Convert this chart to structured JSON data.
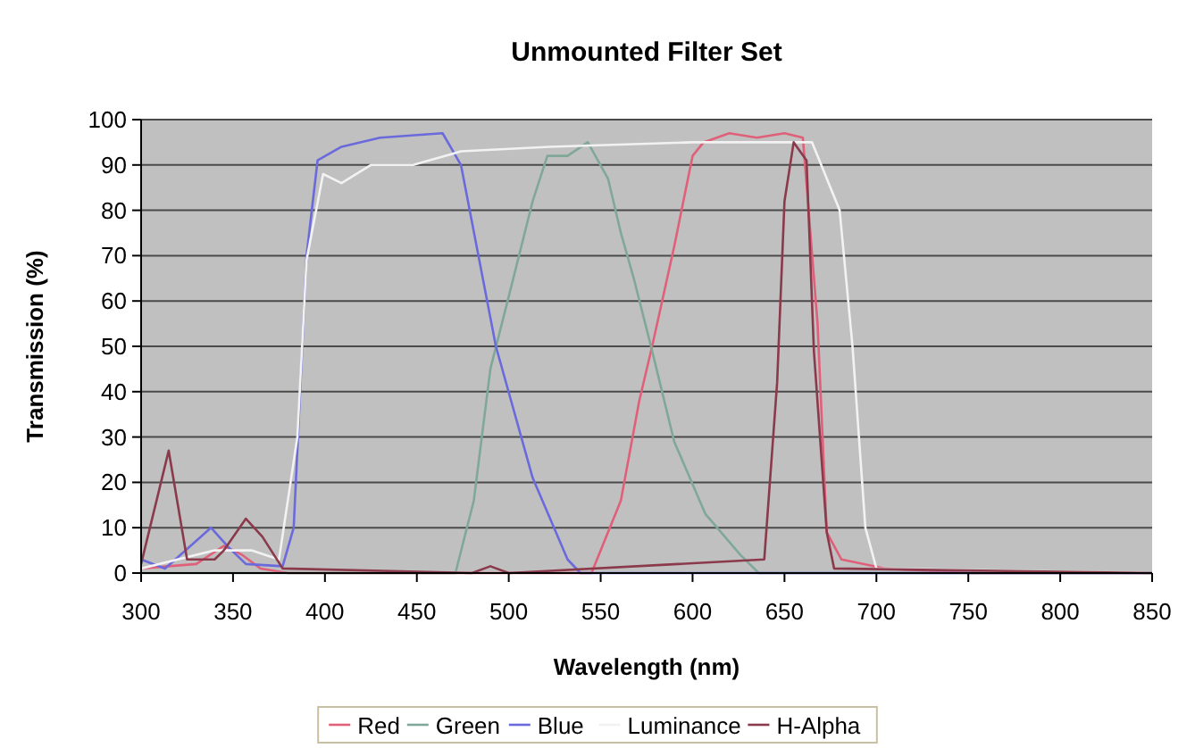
{
  "chart_data": {
    "type": "line",
    "title": "Unmounted Filter Set",
    "xlabel": "Wavelength (nm)",
    "ylabel": "Transmission (%)",
    "xlim": [
      300,
      850
    ],
    "xticks": [
      300,
      350,
      400,
      450,
      500,
      550,
      600,
      650,
      700,
      750,
      800,
      850
    ],
    "ylim": [
      0,
      100
    ],
    "yticks": [
      0,
      10,
      20,
      30,
      40,
      50,
      60,
      70,
      80,
      90,
      100
    ],
    "grid": "y",
    "legend": "bottom",
    "marker": "none",
    "line_style": "solid",
    "series": [
      {
        "name": "Red",
        "color": "#e0607a",
        "x": [
          300,
          330,
          345,
          355,
          365,
          380,
          545,
          561,
          571,
          578,
          590,
          600,
          606,
          620,
          635,
          650,
          660,
          668,
          673,
          681,
          705,
          750,
          850
        ],
        "values": [
          1,
          2,
          6,
          4,
          1,
          0,
          0,
          16,
          38,
          50,
          72,
          92,
          95,
          97,
          96,
          97,
          96,
          55,
          9,
          3,
          1,
          0,
          0
        ]
      },
      {
        "name": "Green",
        "color": "#80a898",
        "x": [
          300,
          380,
          471,
          481,
          490,
          500,
          513,
          521,
          532,
          543,
          554,
          561,
          568,
          578,
          590,
          607,
          626,
          636,
          850
        ],
        "values": [
          0,
          0,
          0,
          16,
          45,
          61,
          82,
          92,
          92,
          95,
          87,
          75,
          65,
          49,
          29,
          13,
          4,
          0,
          0
        ]
      },
      {
        "name": "Blue",
        "color": "#6a6adc",
        "x": [
          300,
          313,
          338,
          348,
          357,
          377,
          383,
          390,
          396,
          409,
          430,
          464,
          474,
          493,
          513,
          532,
          539,
          850
        ],
        "values": [
          3,
          1,
          10,
          5.5,
          2,
          1.5,
          10,
          70,
          91,
          94,
          96,
          97,
          90,
          50,
          21,
          3,
          0,
          0
        ]
      },
      {
        "name": "Luminance",
        "color": "#f2f2f2",
        "x": [
          300,
          340,
          360,
          375,
          385,
          390,
          399,
          409,
          425,
          448,
          474,
          522,
          600,
          665,
          680,
          687,
          694,
          700,
          850
        ],
        "values": [
          1,
          5,
          5,
          3,
          30,
          69,
          88,
          86,
          90,
          90,
          93,
          94,
          95,
          95,
          80,
          50,
          10,
          1,
          0
        ]
      },
      {
        "name": "H-Alpha",
        "color": "#8a3a4a",
        "x": [
          300,
          315,
          325,
          340,
          345,
          357,
          366,
          377,
          480,
          490,
          500,
          639,
          646,
          650,
          655,
          662,
          666,
          673,
          677,
          850
        ],
        "values": [
          2,
          27,
          3,
          3,
          5,
          12,
          8,
          1,
          0,
          1.5,
          0,
          3,
          42,
          82,
          95,
          91,
          49,
          9,
          1,
          0
        ]
      }
    ]
  }
}
